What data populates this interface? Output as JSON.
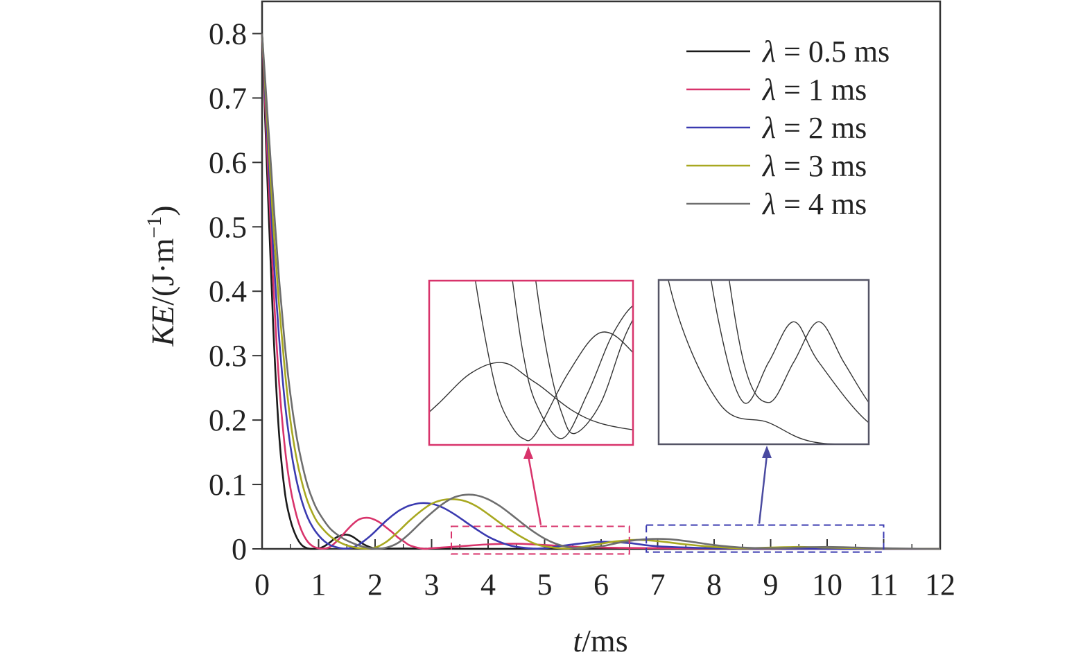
{
  "chart_data": {
    "type": "line",
    "xlabel": {
      "var": "t",
      "unit": "/ms"
    },
    "ylabel": {
      "var": "KE",
      "unit": "/(J·m",
      "sup": "−1",
      "close": ")"
    },
    "xlim": [
      0,
      12
    ],
    "ylim": [
      0,
      0.85
    ],
    "xticks": [
      "0",
      "1",
      "2",
      "3",
      "4",
      "5",
      "6",
      "7",
      "8",
      "9",
      "10",
      "11",
      "12"
    ],
    "yticks": [
      "0",
      "0.1",
      "0.2",
      "0.3",
      "0.4",
      "0.5",
      "0.6",
      "0.7",
      "0.8"
    ],
    "legend_position": "top-right",
    "grid": false,
    "series": [
      {
        "name": "λ = 0.5 ms",
        "color": "#1a1a1a",
        "x": [
          0,
          0.1,
          0.2,
          0.3,
          0.4,
          0.5,
          0.6,
          0.7,
          0.8,
          0.9,
          1.0,
          1.1,
          1.2,
          1.3,
          1.4,
          1.5,
          1.6,
          1.7,
          1.8,
          1.9,
          2.0,
          2.2,
          2.5,
          3.0,
          4.0,
          6.0,
          8.0,
          10.0,
          12.0
        ],
        "y": [
          0.8,
          0.56,
          0.34,
          0.18,
          0.09,
          0.045,
          0.02,
          0.006,
          0.001,
          0.0,
          0.0005,
          0.004,
          0.01,
          0.017,
          0.021,
          0.022,
          0.019,
          0.013,
          0.007,
          0.003,
          0.001,
          0.0003,
          0.0006,
          0.0002,
          0.0,
          0.0,
          0.0,
          0.0,
          0.0
        ]
      },
      {
        "name": "λ = 1 ms",
        "color": "#d8336b",
        "x": [
          0,
          0.1,
          0.2,
          0.3,
          0.4,
          0.5,
          0.6,
          0.7,
          0.8,
          0.9,
          1.0,
          1.1,
          1.2,
          1.3,
          1.4,
          1.5,
          1.6,
          1.7,
          1.8,
          1.9,
          2.0,
          2.1,
          2.2,
          2.3,
          2.4,
          2.5,
          2.6,
          2.7,
          2.8,
          2.9,
          3.0,
          3.5,
          4.0,
          4.5,
          5.0,
          6.0,
          8.0,
          10.0,
          12.0
        ],
        "y": [
          0.8,
          0.6,
          0.41,
          0.26,
          0.16,
          0.095,
          0.055,
          0.028,
          0.012,
          0.004,
          0.001,
          0.0005,
          0.003,
          0.01,
          0.019,
          0.029,
          0.038,
          0.045,
          0.048,
          0.048,
          0.045,
          0.04,
          0.033,
          0.026,
          0.018,
          0.012,
          0.006,
          0.003,
          0.001,
          0.0,
          0.001,
          0.004,
          0.007,
          0.008,
          0.006,
          0.002,
          0.0005,
          0.0,
          0.0
        ]
      },
      {
        "name": "λ = 2 ms",
        "color": "#3a3ab0",
        "x": [
          0,
          0.1,
          0.2,
          0.3,
          0.4,
          0.5,
          0.6,
          0.7,
          0.8,
          0.9,
          1.0,
          1.1,
          1.2,
          1.3,
          1.4,
          1.5,
          1.6,
          1.7,
          1.8,
          1.9,
          2.0,
          2.2,
          2.4,
          2.5,
          2.6,
          2.8,
          3.0,
          3.2,
          3.4,
          3.6,
          3.8,
          4.0,
          4.2,
          4.4,
          4.6,
          4.8,
          5.0,
          5.5,
          6.0,
          6.5,
          7.0,
          8.0,
          9.0,
          10.0,
          12.0
        ],
        "y": [
          0.8,
          0.63,
          0.46,
          0.33,
          0.23,
          0.16,
          0.11,
          0.075,
          0.05,
          0.033,
          0.021,
          0.012,
          0.006,
          0.003,
          0.001,
          0.0005,
          0.002,
          0.006,
          0.012,
          0.019,
          0.027,
          0.044,
          0.058,
          0.063,
          0.067,
          0.071,
          0.07,
          0.064,
          0.054,
          0.042,
          0.03,
          0.019,
          0.011,
          0.005,
          0.002,
          0.0005,
          0.001,
          0.007,
          0.011,
          0.009,
          0.004,
          0.001,
          0.0005,
          0.0,
          0.0
        ]
      },
      {
        "name": "λ = 3 ms",
        "color": "#a8a820",
        "x": [
          0,
          0.1,
          0.2,
          0.3,
          0.4,
          0.5,
          0.6,
          0.7,
          0.8,
          0.9,
          1.0,
          1.2,
          1.4,
          1.6,
          1.8,
          2.0,
          2.2,
          2.4,
          2.6,
          2.8,
          3.0,
          3.2,
          3.4,
          3.6,
          3.8,
          4.0,
          4.2,
          4.4,
          4.6,
          4.8,
          5.0,
          5.4,
          5.8,
          6.2,
          6.6,
          7.0,
          7.5,
          8.0,
          8.5,
          9.0,
          9.5,
          10.0,
          11.0,
          12.0
        ],
        "y": [
          0.8,
          0.65,
          0.5,
          0.38,
          0.28,
          0.2,
          0.145,
          0.105,
          0.075,
          0.054,
          0.039,
          0.02,
          0.009,
          0.003,
          0.0005,
          0.002,
          0.011,
          0.026,
          0.043,
          0.058,
          0.07,
          0.076,
          0.077,
          0.074,
          0.066,
          0.054,
          0.041,
          0.029,
          0.018,
          0.009,
          0.004,
          0.0005,
          0.005,
          0.011,
          0.014,
          0.012,
          0.007,
          0.003,
          0.001,
          0.002,
          0.003,
          0.002,
          0.0005,
          0.0
        ]
      },
      {
        "name": "λ = 4 ms",
        "color": "#6e6e6e",
        "x": [
          0,
          0.1,
          0.2,
          0.3,
          0.4,
          0.5,
          0.6,
          0.7,
          0.8,
          0.9,
          1.0,
          1.2,
          1.4,
          1.6,
          1.8,
          2.0,
          2.2,
          2.4,
          2.6,
          2.8,
          3.0,
          3.2,
          3.4,
          3.6,
          3.8,
          4.0,
          4.2,
          4.4,
          4.6,
          4.8,
          5.0,
          5.2,
          5.4,
          5.6,
          6.0,
          6.4,
          6.8,
          7.2,
          7.6,
          8.0,
          8.5,
          9.0,
          9.5,
          10.0,
          10.5,
          11.0,
          11.5,
          12.0
        ],
        "y": [
          0.8,
          0.67,
          0.54,
          0.42,
          0.32,
          0.24,
          0.18,
          0.135,
          0.1,
          0.075,
          0.057,
          0.032,
          0.018,
          0.009,
          0.003,
          0.0005,
          0.002,
          0.009,
          0.023,
          0.04,
          0.056,
          0.07,
          0.08,
          0.084,
          0.083,
          0.077,
          0.067,
          0.054,
          0.04,
          0.027,
          0.016,
          0.008,
          0.003,
          0.001,
          0.004,
          0.011,
          0.015,
          0.015,
          0.011,
          0.006,
          0.002,
          0.001,
          0.002,
          0.003,
          0.002,
          0.001,
          0.0003,
          0.0
        ]
      }
    ],
    "annotations": {
      "dashed_boxes": [
        {
          "color": "#d8336b",
          "xrange": [
            3.35,
            6.5
          ],
          "yrange": [
            -0.008,
            0.035
          ]
        },
        {
          "color": "#3a3ab0",
          "xrange": [
            6.8,
            11.0
          ],
          "yrange": [
            -0.005,
            0.037
          ]
        }
      ],
      "insets": [
        {
          "border_color": "#d8336b",
          "arrow_color": "#d8336b"
        },
        {
          "border_color": "#555566",
          "arrow_color": "#4a4aa0"
        }
      ]
    }
  }
}
